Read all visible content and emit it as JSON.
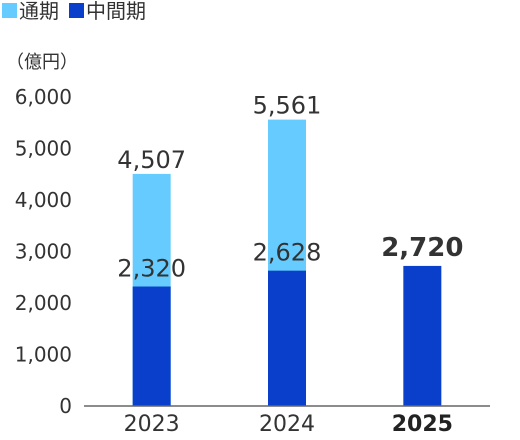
{
  "chart_data": {
    "type": "bar",
    "stacked": false,
    "unit_label": "（億円）",
    "categories": [
      "2023",
      "2024",
      "2025"
    ],
    "bold_categories": [
      "2025"
    ],
    "series": [
      {
        "name": "通期",
        "values": [
          4507,
          5561,
          null
        ],
        "color": "#66ccff"
      },
      {
        "name": "中間期",
        "values": [
          2320,
          2628,
          2720
        ],
        "color": "#0a3fcc"
      }
    ],
    "data_labels": {
      "full_year": [
        "4,507",
        "5,561",
        ""
      ],
      "interim": [
        "2,320",
        "2,628",
        "2,720"
      ]
    },
    "yticks": [
      0,
      1000,
      2000,
      3000,
      4000,
      5000,
      6000
    ],
    "ytick_labels": [
      "0",
      "1,000",
      "2,000",
      "3,000",
      "4,000",
      "5,000",
      "6,000"
    ],
    "ylim": [
      0,
      6000
    ],
    "grid": false,
    "legend_position": "top-left"
  }
}
